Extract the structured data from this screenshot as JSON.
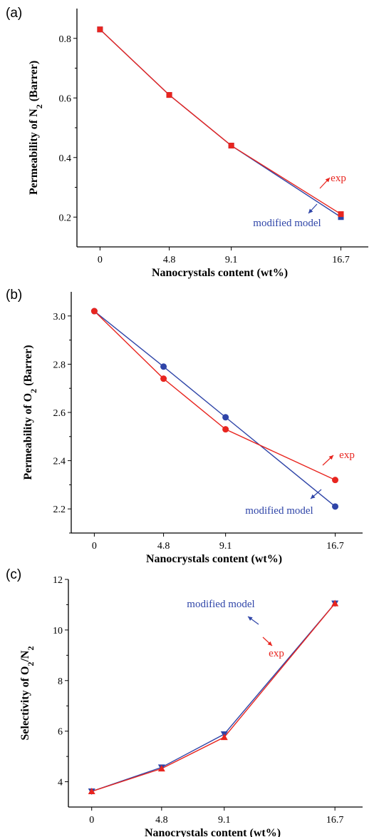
{
  "colors": {
    "exp": "#e8251f",
    "model": "#2f45a8",
    "axis": "#000000"
  },
  "chart_data": [
    {
      "panel_label": "(a)",
      "type": "line",
      "xlabel": "Nanocrystals content (wt%)",
      "ylabel": "Permeability of N2 (Barrer)",
      "ylabel_parts": {
        "pre": "Permeability of N",
        "sub": "2",
        "post": " (Barrer)"
      },
      "categories": [
        "0",
        "4.8",
        "9.1",
        "16.7"
      ],
      "x": [
        0,
        4.8,
        9.1,
        16.7
      ],
      "xlim": [
        -1.6,
        18.6
      ],
      "ylim": [
        0.1,
        0.9
      ],
      "yticks": [
        0.2,
        0.4,
        0.6,
        0.8
      ],
      "ytick_labels": [
        "0.2",
        "0.4",
        "0.6",
        "0.8"
      ],
      "marker": "square",
      "series": [
        {
          "name": "modified model",
          "key": "model",
          "values": [
            0.83,
            0.61,
            0.44,
            0.2
          ]
        },
        {
          "name": "exp",
          "key": "exp",
          "values": [
            0.83,
            0.61,
            0.44,
            0.21
          ]
        }
      ]
    },
    {
      "panel_label": "(b)",
      "type": "line",
      "xlabel": "Nanocrystals content (wt%)",
      "ylabel": "Permeability of O2 (Barrer)",
      "ylabel_parts": {
        "pre": "Permeability of O",
        "sub": "2",
        "post": " (Barrer)"
      },
      "categories": [
        "0",
        "4.8",
        "9.1",
        "16.7"
      ],
      "x": [
        0,
        4.8,
        9.1,
        16.7
      ],
      "xlim": [
        -1.6,
        18.6
      ],
      "ylim": [
        2.1,
        3.1
      ],
      "yticks": [
        2.2,
        2.4,
        2.6,
        2.8,
        3.0
      ],
      "ytick_labels": [
        "2.2",
        "2.4",
        "2.6",
        "2.8",
        "3.0"
      ],
      "marker": "circle",
      "series": [
        {
          "name": "modified model",
          "key": "model",
          "values": [
            3.02,
            2.79,
            2.58,
            2.21
          ]
        },
        {
          "name": "exp",
          "key": "exp",
          "values": [
            3.02,
            2.74,
            2.53,
            2.32
          ]
        }
      ]
    },
    {
      "panel_label": "(c)",
      "type": "line",
      "xlabel": "Nanocrystals content (wt%)",
      "ylabel": "Selectivity of O2/N2",
      "ylabel_parts": {
        "pre": "Selectivity of O",
        "sub": "2",
        "mid": "/N",
        "sub2": "2"
      },
      "categories": [
        "0",
        "4.8",
        "9.1",
        "16.7"
      ],
      "x": [
        0,
        4.8,
        9.1,
        16.7
      ],
      "xlim": [
        -1.6,
        18.6
      ],
      "ylim": [
        3,
        12
      ],
      "yticks": [
        4,
        6,
        8,
        10,
        12
      ],
      "ytick_labels": [
        "4",
        "6",
        "8",
        "10",
        "12"
      ],
      "marker": "triangle-star",
      "series": [
        {
          "name": "modified model",
          "key": "model",
          "values": [
            3.62,
            4.57,
            5.88,
            11.05
          ]
        },
        {
          "name": "exp",
          "key": "exp",
          "values": [
            3.62,
            4.52,
            5.76,
            11.05
          ]
        }
      ]
    }
  ]
}
